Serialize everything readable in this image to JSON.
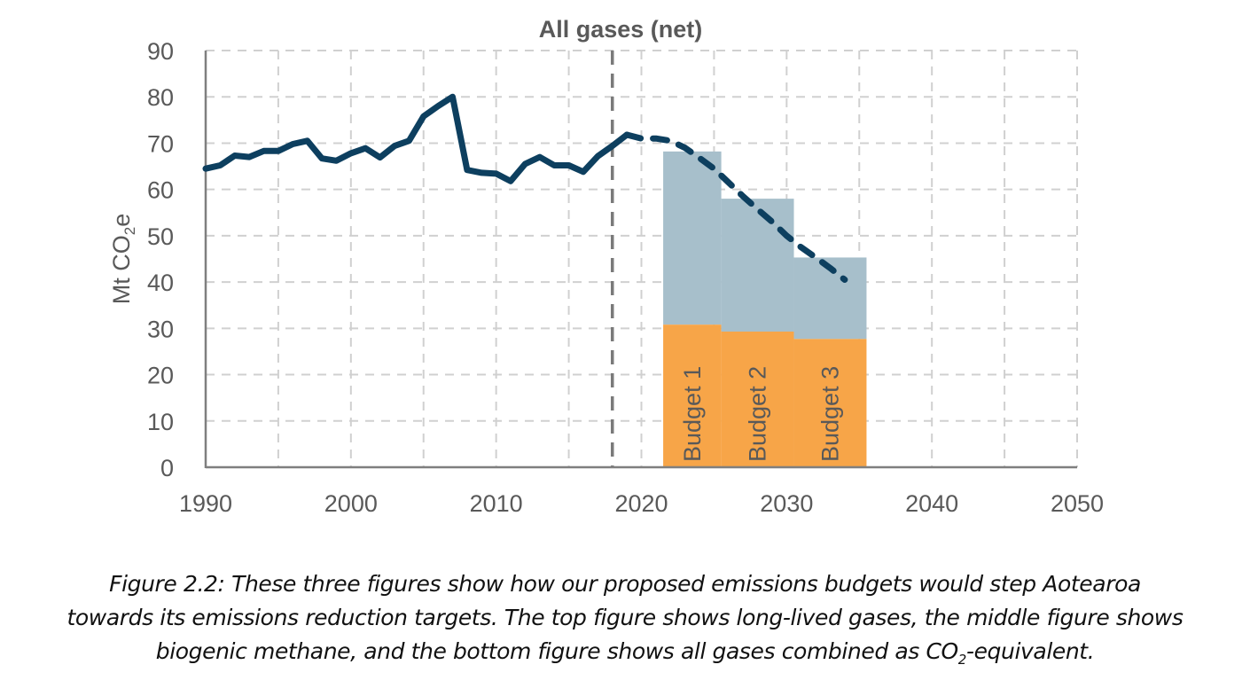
{
  "chart_data": {
    "type": "line",
    "title": "All gases (net)",
    "xlabel": "",
    "ylabel": "Mt CO2e",
    "ylabel_parts": {
      "main": "Mt CO",
      "sub": "2",
      "tail": "e"
    },
    "xlim": [
      1990,
      2050
    ],
    "ylim": [
      0,
      90
    ],
    "x_ticks": [
      1990,
      2000,
      2010,
      2020,
      2030,
      2040,
      2050
    ],
    "y_ticks": [
      0,
      10,
      20,
      30,
      40,
      50,
      60,
      70,
      80,
      90
    ],
    "grid": true,
    "divider_year": 2018,
    "series": [
      {
        "name": "Historical",
        "style": "solid",
        "color": "#0d3f5f",
        "x": [
          1990,
          1991,
          1992,
          1993,
          1994,
          1995,
          1996,
          1997,
          1998,
          1999,
          2000,
          2001,
          2002,
          2003,
          2004,
          2005,
          2006,
          2007,
          2008,
          2009,
          2010,
          2011,
          2012,
          2013,
          2014,
          2015,
          2016,
          2017,
          2018,
          2019
        ],
        "y": [
          64.5,
          65.2,
          67.3,
          67.0,
          68.3,
          68.3,
          69.8,
          70.5,
          66.7,
          66.2,
          67.8,
          68.9,
          66.9,
          69.4,
          70.5,
          75.8,
          78.0,
          80.0,
          64.2,
          63.6,
          63.4,
          61.8,
          65.5,
          67.0,
          65.2,
          65.2,
          63.8,
          67.2,
          69.4,
          71.8
        ]
      },
      {
        "name": "Projection",
        "style": "dashed",
        "color": "#0d3f5f",
        "x": [
          2019,
          2020,
          2021,
          2022,
          2023,
          2024,
          2025,
          2026,
          2027,
          2028,
          2029,
          2030,
          2031,
          2032,
          2033,
          2034
        ],
        "y": [
          71.8,
          71.0,
          71.0,
          70.5,
          69.0,
          66.8,
          64.5,
          61.5,
          58.5,
          55.7,
          53.0,
          50.0,
          47.5,
          45.3,
          43.0,
          40.5
        ]
      }
    ],
    "budgets": [
      {
        "label": "Budget 1",
        "start": 2021.5,
        "end": 2025.5,
        "total": 68.2,
        "lower": 30.8
      },
      {
        "label": "Budget 2",
        "start": 2025.5,
        "end": 2030.5,
        "total": 58.0,
        "lower": 29.3
      },
      {
        "label": "Budget 3",
        "start": 2030.5,
        "end": 2035.5,
        "total": 45.3,
        "lower": 27.7
      }
    ],
    "colors": {
      "upper": "#a7bfcb",
      "lower": "#f7a548",
      "axis": "#7f7f7f",
      "grid": "#d0d0d0",
      "text": "#595959",
      "divider": "#7a7a7a"
    }
  },
  "caption": {
    "line1": "Figure 2.2: These three figures show how our proposed emissions budgets would step Aotearoa",
    "line2": "towards its emissions reduction targets. The top figure shows long-lived gases, the middle figure shows",
    "line3_a": "biogenic methane, and the bottom figure shows all gases combined as CO",
    "line3_sub": "2",
    "line3_b": "-equivalent."
  }
}
